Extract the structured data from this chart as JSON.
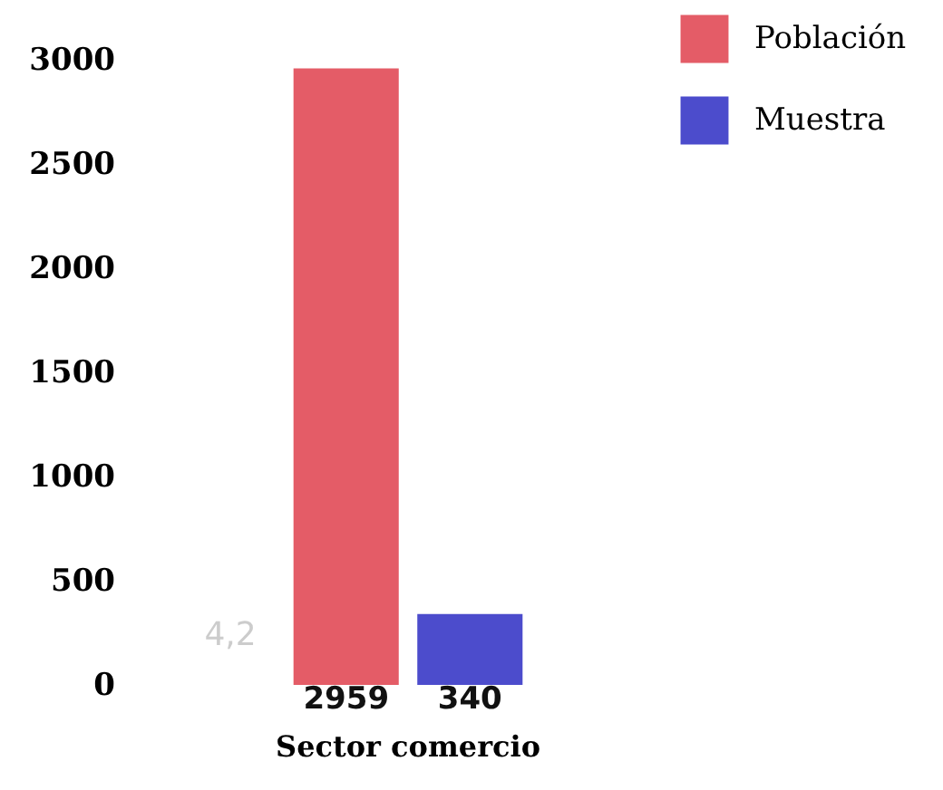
{
  "chart_data": {
    "type": "bar",
    "categories": [
      "Sector comercio"
    ],
    "series": [
      {
        "name": "Población",
        "color": "#e45c67",
        "values": [
          2959
        ]
      },
      {
        "name": "Muestra",
        "color": "#4c4ccc",
        "values": [
          340
        ]
      }
    ],
    "ylim": [
      0,
      3000
    ],
    "yticks": [
      0,
      500,
      1000,
      1500,
      2000,
      2500,
      3000
    ],
    "data_labels": true,
    "legend": "top right",
    "grid": false,
    "annotations": [
      "4,2"
    ]
  }
}
